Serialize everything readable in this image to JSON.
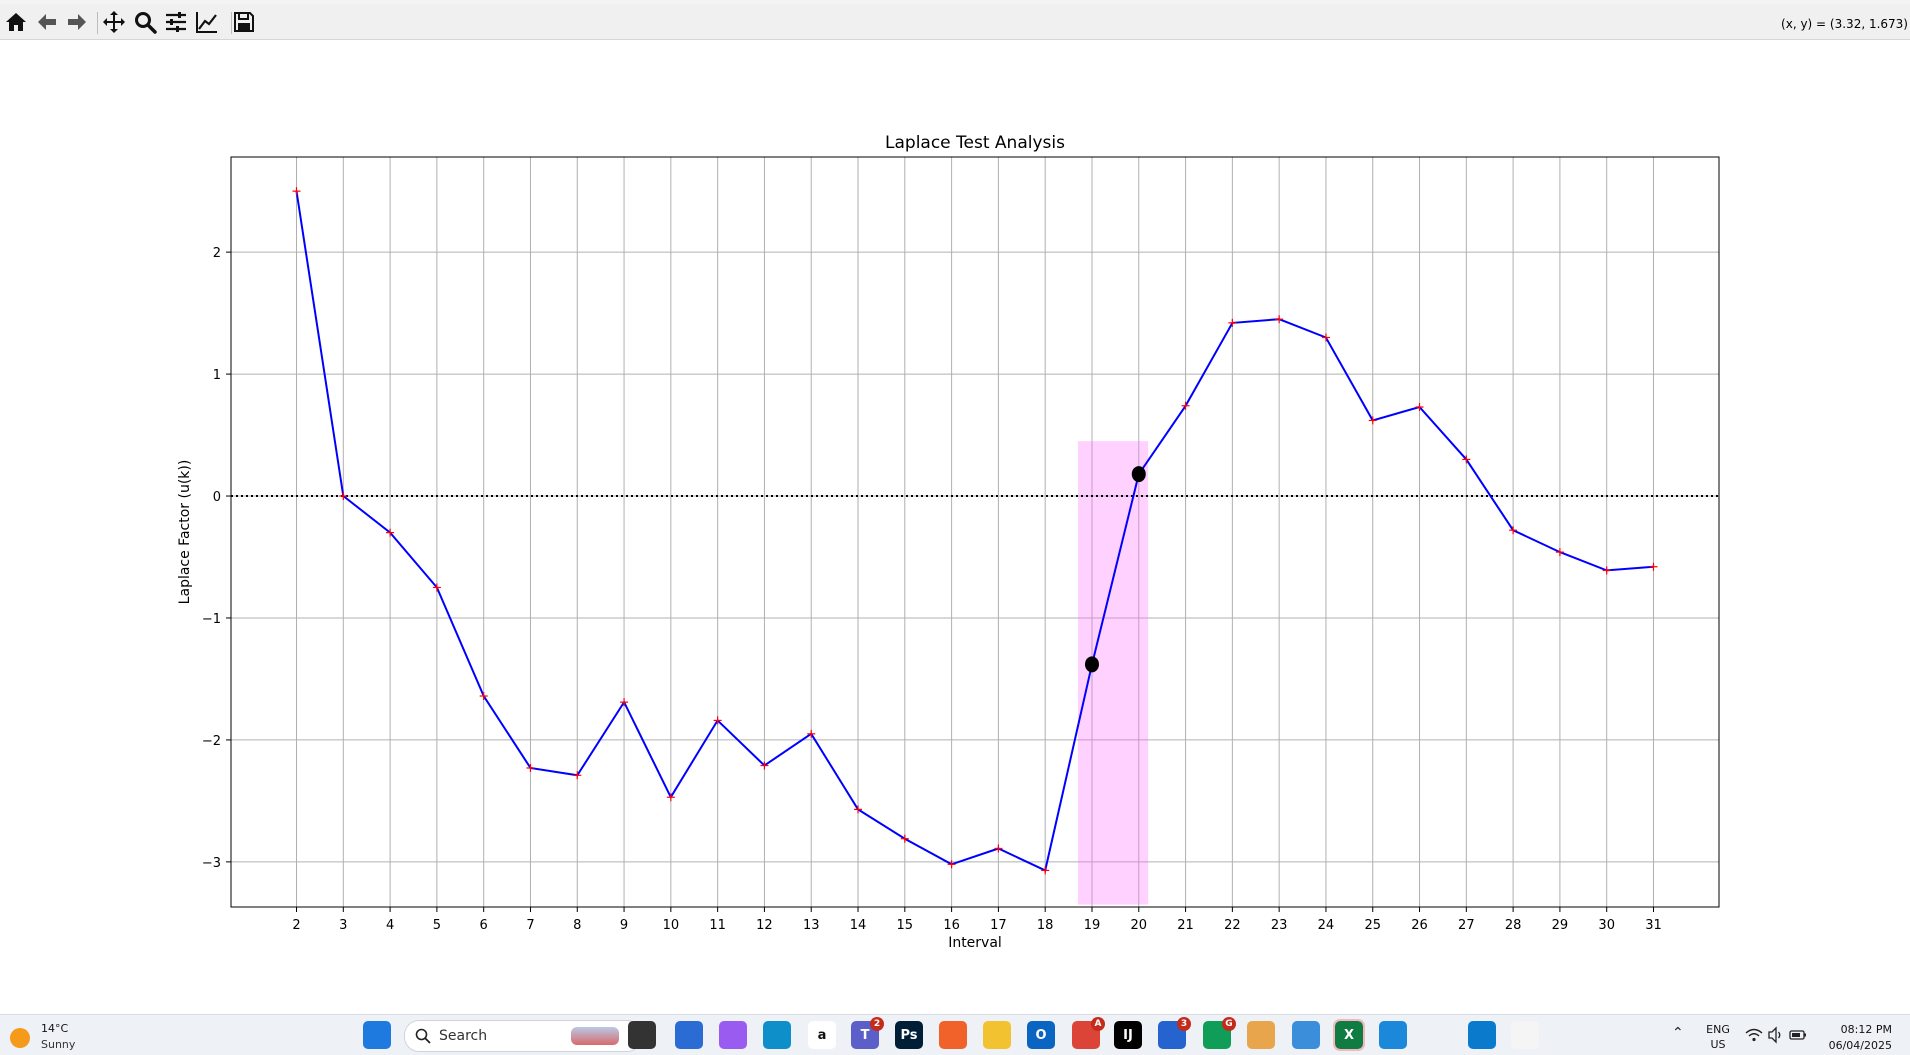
{
  "toolbar": {
    "buttons": [
      {
        "name": "home",
        "icon": "home-icon",
        "tooltip": "Reset original view"
      },
      {
        "name": "back",
        "icon": "arrow-left-icon",
        "tooltip": "Back"
      },
      {
        "name": "forward",
        "icon": "arrow-right-icon",
        "tooltip": "Forward"
      },
      {
        "name": "pan",
        "icon": "move-icon",
        "tooltip": "Pan"
      },
      {
        "name": "zoom",
        "icon": "magnifier-icon",
        "tooltip": "Zoom"
      },
      {
        "name": "configure",
        "icon": "sliders-icon",
        "tooltip": "Configure subplots"
      },
      {
        "name": "edit-axis",
        "icon": "line-chart-icon",
        "tooltip": "Edit axis"
      },
      {
        "name": "save",
        "icon": "floppy-disk-icon",
        "tooltip": "Save"
      }
    ],
    "coord_readout": "(x, y) = (3.32, 1.673)"
  },
  "chart_data": {
    "type": "line",
    "title": "Laplace Test Analysis",
    "xlabel": "Interval",
    "ylabel": "Laplace Factor (u(k))",
    "x": [
      2,
      3,
      4,
      5,
      6,
      7,
      8,
      9,
      10,
      11,
      12,
      13,
      14,
      15,
      16,
      17,
      18,
      19,
      20,
      21,
      22,
      23,
      24,
      25,
      26,
      27,
      28,
      29,
      30,
      31
    ],
    "xticks": [
      "2",
      "3",
      "4",
      "5",
      "6",
      "7",
      "8",
      "9",
      "10",
      "11",
      "12",
      "13",
      "14",
      "15",
      "16",
      "17",
      "18",
      "19",
      "20",
      "21",
      "22",
      "23",
      "24",
      "25",
      "26",
      "27",
      "28",
      "29",
      "30",
      "31"
    ],
    "yticks": [
      {
        "value": 2,
        "label": "2"
      },
      {
        "value": 1,
        "label": "1"
      },
      {
        "value": 0,
        "label": "0"
      },
      {
        "value": -1,
        "label": "−1"
      },
      {
        "value": -2,
        "label": "−2"
      },
      {
        "value": -3,
        "label": "−3"
      }
    ],
    "series": [
      {
        "values": [
          2.5,
          0.0,
          -0.3,
          -0.75,
          -1.64,
          -2.23,
          -2.29,
          -1.69,
          -2.47,
          -1.84,
          -2.21,
          -1.95,
          -2.57,
          -2.81,
          -3.02,
          -2.89,
          -3.07,
          -1.38,
          0.18,
          0.74,
          1.42,
          1.45,
          1.3,
          0.62,
          0.73,
          0.3,
          -0.28,
          -0.46,
          -0.61,
          -0.58
        ],
        "color": "#0000ff",
        "marker": "+",
        "marker_color": "#ff0000"
      }
    ],
    "reference_line": {
      "y": 0,
      "style": "dotted",
      "color": "#000000"
    },
    "highlight": {
      "x_range": [
        18.7,
        20.2
      ],
      "y_range": [
        -3.35,
        0.45
      ],
      "color": "#ff66ff",
      "opacity": 0.3
    },
    "highlight_points": [
      {
        "x": 19,
        "y": -1.38
      },
      {
        "x": 20,
        "y": 0.18
      }
    ],
    "xlim": [
      0.6,
      32.4
    ],
    "ylim": [
      -3.37,
      2.78
    ],
    "grid": true
  },
  "taskbar": {
    "weather": {
      "temp": "14°C",
      "condition": "Sunny"
    },
    "search_placeholder": "Search",
    "apps": [
      {
        "name": "windows-start",
        "icon": "windows-icon",
        "color": "#1f7ae0",
        "label": ""
      },
      {
        "name": "task-view",
        "icon": "task-view-icon",
        "color": "#333333",
        "label": ""
      },
      {
        "name": "microsoft-store",
        "icon": "store-icon",
        "color": "#2b6cd4",
        "label": ""
      },
      {
        "name": "copilot",
        "icon": "copilot-icon",
        "color": "#9a5cf0",
        "label": ""
      },
      {
        "name": "edge",
        "icon": "edge-icon",
        "color": "#0f8fc9",
        "label": ""
      },
      {
        "name": "amazon",
        "icon": "amazon-icon",
        "color": "#ffffff",
        "label": "a"
      },
      {
        "name": "teams",
        "icon": "teams-icon",
        "color": "#5b5fc7",
        "label": "T",
        "badge": "2"
      },
      {
        "name": "photoshop",
        "icon": "photoshop-icon",
        "color": "#001e36",
        "label": "Ps"
      },
      {
        "name": "firefox",
        "icon": "firefox-icon",
        "color": "#f0622a",
        "label": ""
      },
      {
        "name": "file-explorer",
        "icon": "folder-icon",
        "color": "#f2c231",
        "label": ""
      },
      {
        "name": "outlook",
        "icon": "outlook-icon",
        "color": "#0a64c2",
        "label": "O"
      },
      {
        "name": "chrome-profile-a",
        "icon": "chrome-icon",
        "color": "#db4437",
        "label": "",
        "badge": "A"
      },
      {
        "name": "intellij",
        "icon": "intellij-icon",
        "color": "#000000",
        "label": "IJ"
      },
      {
        "name": "todo",
        "icon": "todo-check-icon",
        "color": "#2564cf",
        "label": "",
        "badge": "3"
      },
      {
        "name": "chrome-profile-g",
        "icon": "chrome-icon",
        "color": "#0f9d58",
        "label": "",
        "badge": "G"
      },
      {
        "name": "git-tool",
        "icon": "diamond-icon",
        "color": "#e8a54b",
        "label": ""
      },
      {
        "name": "notepad",
        "icon": "notepad-icon",
        "color": "#3b8ed9",
        "label": ""
      },
      {
        "name": "excel",
        "icon": "excel-icon",
        "color": "#107c41",
        "label": "X"
      },
      {
        "name": "photos",
        "icon": "photos-icon",
        "color": "#1c88d9",
        "label": ""
      },
      {
        "name": "vscode",
        "icon": "vscode-icon",
        "color": "#0a7acc",
        "label": ""
      },
      {
        "name": "python-figure",
        "icon": "matplotlib-icon",
        "color": "#f5f5f5",
        "label": ""
      }
    ],
    "tray": {
      "lang": "ENG",
      "region": "US",
      "time": "08:12 PM",
      "date": "06/04/2025"
    }
  }
}
